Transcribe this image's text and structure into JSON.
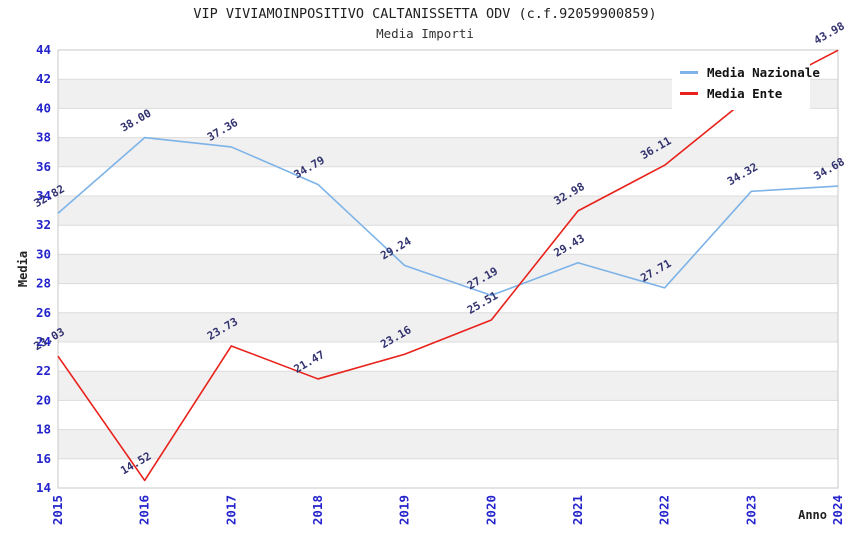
{
  "page": {
    "title": "VIP VIVIAMOINPOSITIVO CALTANISSETTA ODV (c.f.92059900859)",
    "subtitle": "Media Importi"
  },
  "colors": {
    "media_nazionale": "#7db3e8",
    "media_ente": "#e8211a",
    "axis_tick_text": "#2424cc",
    "data_label_text": "#333370",
    "band_fill": "#f0f0f0",
    "gridline": "#dcdcdc",
    "plot_border": "#c8c8c8",
    "title_text": "#1f1f1f"
  },
  "chart_data": {
    "type": "line",
    "title": "VIP VIVIAMOINPOSITIVO CALTANISSETTA ODV (c.f.92059900859)",
    "subtitle": "Media Importi",
    "xlabel": "Anno",
    "ylabel": "Media",
    "x": [
      "2015",
      "2016",
      "2017",
      "2018",
      "2019",
      "2020",
      "2021",
      "2022",
      "2023",
      "2024"
    ],
    "ylim": [
      14,
      44
    ],
    "y_ticks": [
      14,
      16,
      18,
      20,
      22,
      24,
      26,
      28,
      30,
      32,
      34,
      36,
      38,
      40,
      42,
      44
    ],
    "grid": "horizontal-bands-alternating",
    "legend_position": "top-right",
    "series": [
      {
        "name": "Media Nazionale",
        "color": "#7db3e8",
        "values": [
          32.82,
          38.0,
          37.36,
          34.79,
          29.24,
          27.19,
          29.43,
          27.71,
          34.32,
          34.68
        ],
        "labels": [
          "32.82",
          "38.00",
          "37.36",
          "34.79",
          "29.24",
          "27.19",
          "29.43",
          "27.71",
          "34.32",
          "34.68"
        ]
      },
      {
        "name": "Media Ente",
        "color": "#e8211a",
        "values": [
          23.03,
          14.52,
          23.73,
          21.47,
          23.16,
          25.51,
          32.98,
          36.11,
          40.9,
          43.98
        ],
        "labels": [
          "23.03",
          "14.52",
          "23.73",
          "21.47",
          "23.16",
          "25.51",
          "32.98",
          "36.11",
          null,
          "43.98"
        ],
        "note": "2023 value estimated from line path; its label is hidden behind the legend box"
      }
    ]
  }
}
